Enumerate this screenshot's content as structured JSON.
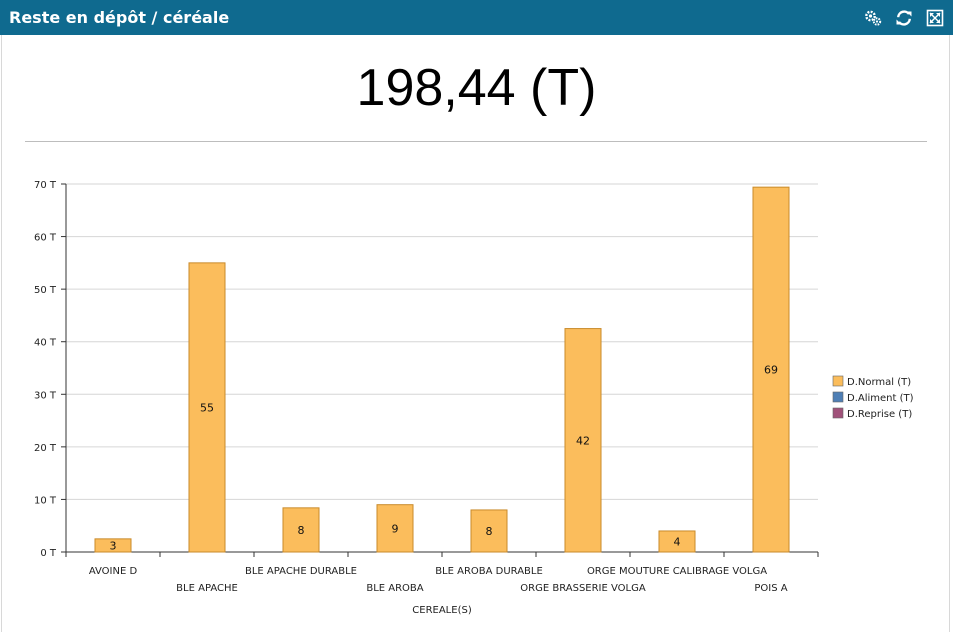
{
  "window": {
    "title": "Reste en dépôt / céréale",
    "icons": [
      "settings-gears-icon",
      "refresh-icon",
      "fullscreen-icon"
    ]
  },
  "summary": {
    "total": "198,44 (T)"
  },
  "chart_data": {
    "type": "bar",
    "xlabel": "CEREALE(S)",
    "ylabel": "",
    "ylim": [
      0,
      70
    ],
    "yticks": [
      "0 T",
      "10 T",
      "20 T",
      "30 T",
      "40 T",
      "50 T",
      "60 T",
      "70 T"
    ],
    "grid": true,
    "legend_position": "right",
    "categories": [
      "AVOINE D",
      "BLE APACHE",
      "BLE APACHE DURABLE",
      "BLE AROBA",
      "BLE AROBA DURABLE",
      "ORGE BRASSERIE VOLGA",
      "ORGE MOUTURE CALIBRAGE VOLGA",
      "POIS A"
    ],
    "series": [
      {
        "name": "D.Normal (T)",
        "color": "#fbbd5c",
        "values": [
          2.5,
          55,
          8.4,
          9,
          8,
          42.5,
          4,
          69.4
        ],
        "labels": [
          "3",
          "55",
          "8",
          "9",
          "8",
          "42",
          "4",
          "69"
        ]
      },
      {
        "name": "D.Aliment (T)",
        "color": "#4f7fb5",
        "values": [
          0,
          0,
          0,
          0,
          0,
          0,
          0,
          0
        ],
        "labels": []
      },
      {
        "name": "D.Reprise (T)",
        "color": "#a0527a",
        "values": [
          0,
          0,
          0,
          0,
          0,
          0,
          0,
          0
        ],
        "labels": []
      }
    ]
  }
}
